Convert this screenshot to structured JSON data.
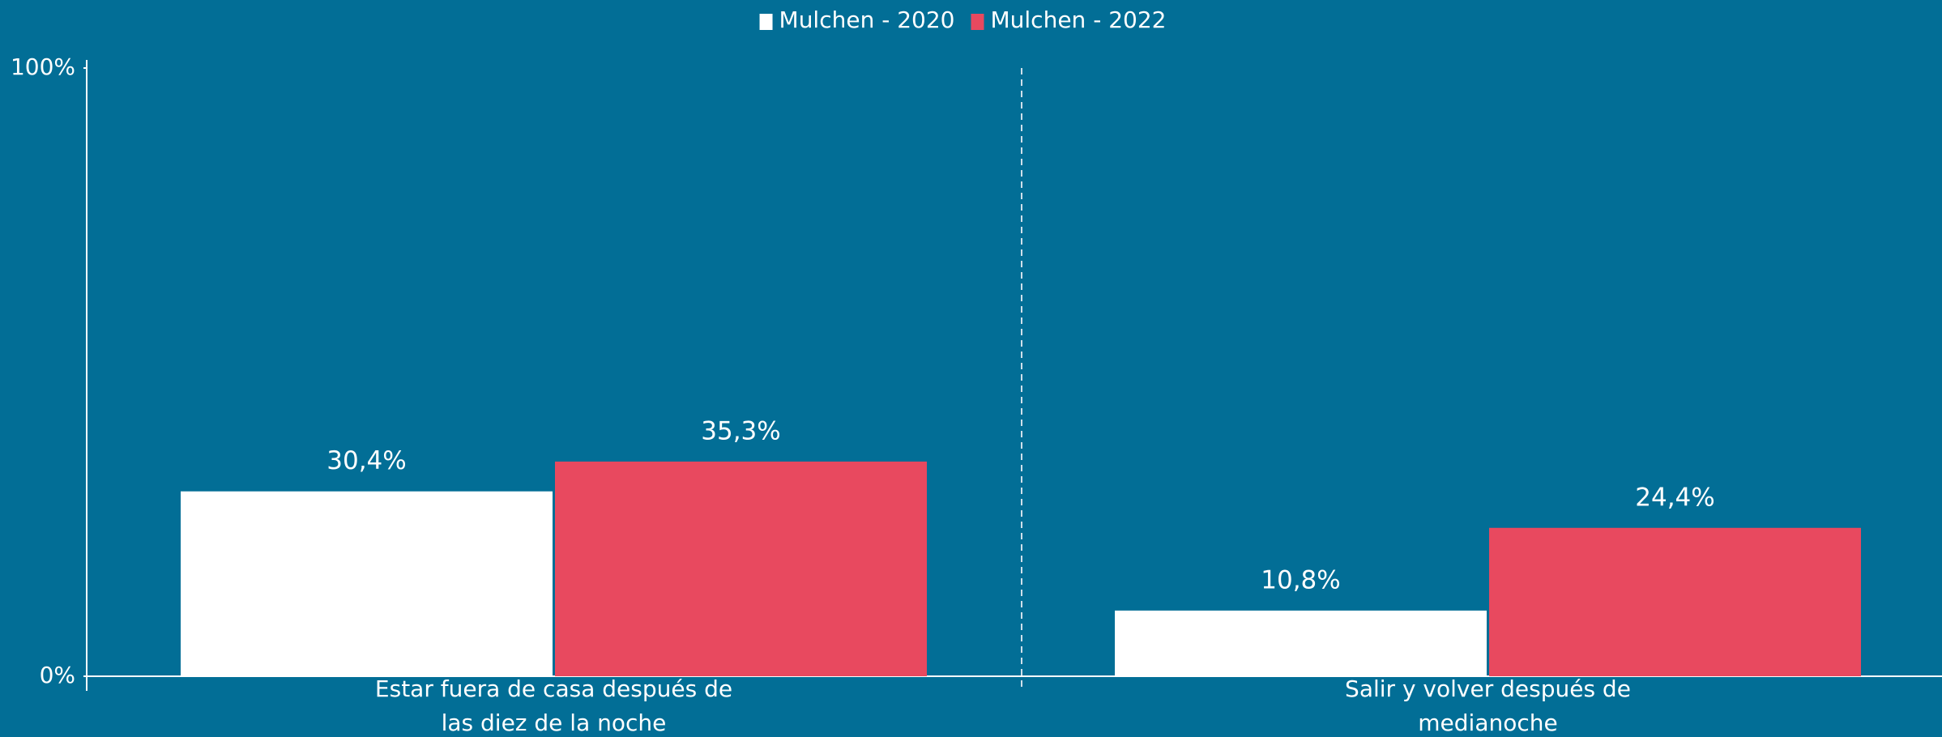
{
  "chart_data": {
    "type": "bar",
    "categories": [
      [
        "Estar fuera de casa después de",
        "las diez de la noche"
      ],
      [
        "Salir y volver después de",
        "medianoche"
      ]
    ],
    "series": [
      {
        "name": "Mulchen - 2020",
        "color": "#ffffff",
        "values": [
          30.4,
          10.8
        ],
        "value_labels": [
          "30,4%",
          "10,8%"
        ]
      },
      {
        "name": "Mulchen - 2022",
        "color": "#e8495f",
        "values": [
          35.3,
          24.4
        ],
        "value_labels": [
          "35,3%",
          "24,4%"
        ]
      }
    ],
    "ylim": [
      0,
      100
    ],
    "yticks": [
      {
        "value": 0,
        "label": "0%"
      },
      {
        "value": 100,
        "label": "100%"
      }
    ],
    "legend": "top"
  }
}
